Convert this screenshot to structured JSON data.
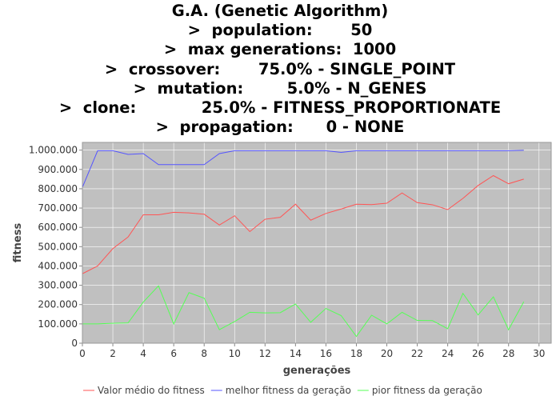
{
  "title_lines": [
    "G.A. (Genetic Algorithm)",
    ">  population:       50",
    ">  max generations:  1000",
    ">  crossover:       75.0% - SINGLE_POINT",
    ">  mutation:        5.0% - N_GENES",
    ">  clone:            25.0% - FITNESS_PROPORTIONATE",
    ">  propagation:      0 - NONE"
  ],
  "chart_data": {
    "type": "line",
    "title": "G.A. (Genetic Algorithm)",
    "xlabel": "generações",
    "ylabel": "fitness",
    "xlim": [
      0,
      30.8
    ],
    "ylim": [
      0,
      1040000
    ],
    "x_ticks": [
      0,
      2,
      4,
      6,
      8,
      10,
      12,
      14,
      16,
      18,
      20,
      22,
      24,
      26,
      28,
      30
    ],
    "y_ticks": [
      0,
      100000,
      200000,
      300000,
      400000,
      500000,
      600000,
      700000,
      800000,
      900000,
      1000000
    ],
    "y_tick_labels": [
      "0",
      "100.000",
      "200.000",
      "300.000",
      "400.000",
      "500.000",
      "600.000",
      "700.000",
      "800.000",
      "900.000",
      "1.000.000"
    ],
    "grid": true,
    "background": "#c0c0c0",
    "legend_position": "bottom",
    "x": [
      0,
      1,
      2,
      3,
      4,
      5,
      6,
      7,
      8,
      9,
      10,
      11,
      12,
      13,
      14,
      15,
      16,
      17,
      18,
      19,
      20,
      21,
      22,
      23,
      24,
      25,
      26,
      27,
      28,
      29
    ],
    "series": [
      {
        "name": "Valor médio do fitness",
        "color": "#ff5555",
        "values": [
          360000,
          400000,
          490000,
          550000,
          665000,
          665000,
          678000,
          675000,
          668000,
          612000,
          660000,
          578000,
          642000,
          652000,
          720000,
          637000,
          672000,
          695000,
          720000,
          718000,
          725000,
          778000,
          728000,
          717000,
          692000,
          750000,
          817000,
          868000,
          826000,
          850000
        ]
      },
      {
        "name": "melhor fitness da geração",
        "color": "#5555ff",
        "values": [
          807000,
          997000,
          997000,
          978000,
          982000,
          925000,
          925000,
          925000,
          925000,
          982000,
          997000,
          997000,
          997000,
          997000,
          997000,
          997000,
          997000,
          988000,
          997000,
          997000,
          997000,
          997000,
          997000,
          997000,
          997000,
          997000,
          997000,
          997000,
          997000,
          999000
        ]
      },
      {
        "name": "pior fitness da geração",
        "color": "#55ff55",
        "values": [
          100000,
          100000,
          103000,
          105000,
          213000,
          297000,
          100000,
          262000,
          233000,
          70000,
          112000,
          160000,
          157000,
          158000,
          203000,
          108000,
          180000,
          143000,
          35000,
          145000,
          100000,
          160000,
          118000,
          117000,
          75000,
          258000,
          147000,
          240000,
          70000,
          215000
        ]
      }
    ]
  }
}
